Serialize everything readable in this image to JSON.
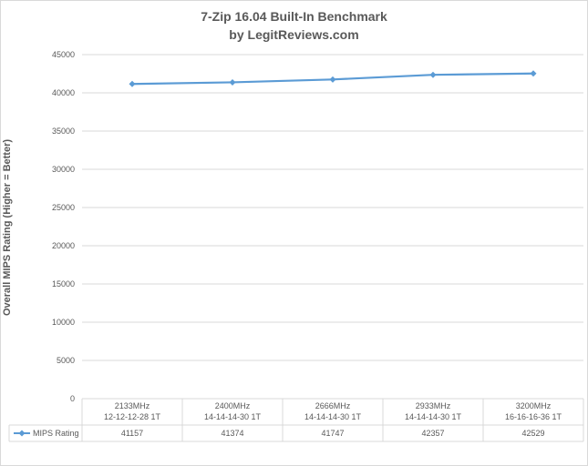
{
  "chart_data": {
    "type": "line",
    "title": "7-Zip 16.04 Built-In Benchmark",
    "subtitle": "by LegitReviews.com",
    "ylabel": "Overall MIPS Rating (Higher = Better)",
    "xlabel": "",
    "ylim": [
      0,
      45000
    ],
    "yticks": [
      0,
      5000,
      10000,
      15000,
      20000,
      25000,
      30000,
      35000,
      40000,
      45000
    ],
    "grid": true,
    "legend": "data-table",
    "categories": [
      [
        "2133MHz",
        "12-12-12-28 1T"
      ],
      [
        "2400MHz",
        "14-14-14-30 1T"
      ],
      [
        "2666MHz",
        "14-14-14-30 1T"
      ],
      [
        "2933MHz",
        "14-14-14-30 1T"
      ],
      [
        "3200MHz",
        "16-16-16-36 1T"
      ]
    ],
    "series": [
      {
        "name": "MIPS Rating",
        "values": [
          41157,
          41374,
          41747,
          42357,
          42529
        ],
        "color": "#5b9bd5"
      }
    ]
  }
}
